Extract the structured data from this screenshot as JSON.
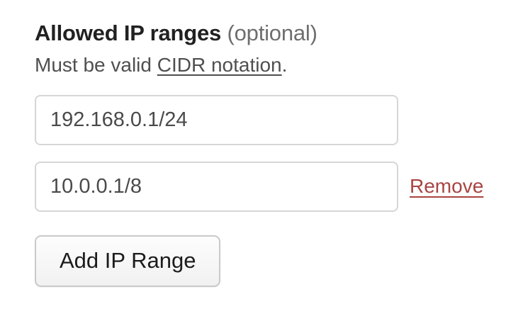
{
  "heading": {
    "title": "Allowed IP ranges",
    "optional": "(optional)"
  },
  "description": {
    "prefix": "Must be valid ",
    "link_text": "CIDR notation",
    "suffix": "."
  },
  "ip_ranges": [
    {
      "value": "192.168.0.1/24"
    },
    {
      "value": "10.0.0.1/8"
    }
  ],
  "remove_label": "Remove",
  "add_button_label": "Add IP Range",
  "colors": {
    "heading_text": "#212121",
    "optional_text": "#6e6e6e",
    "body_text": "#4f4f4f",
    "input_text": "#4a4a4a",
    "input_border": "#d6d6d6",
    "remove_link_red": "#a94442",
    "button_border": "#c9c9c9",
    "background": "#ffffff"
  }
}
